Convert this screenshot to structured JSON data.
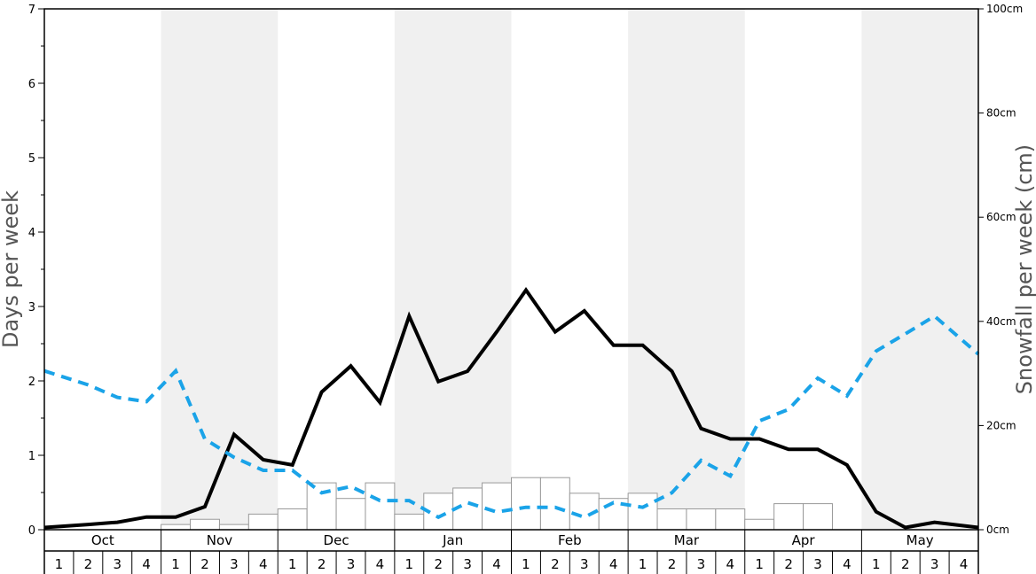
{
  "chart_data": {
    "type": "bar",
    "ylabel_left": "Days per week",
    "ylabel_right": "Snowfall per week (cm)",
    "ylim_left": [
      0,
      7
    ],
    "ylim_right": [
      0,
      100
    ],
    "left_ticks": [
      "0",
      "1",
      "2",
      "3",
      "4",
      "5",
      "6",
      "7"
    ],
    "right_ticks": [
      "0cm",
      "20cm",
      "40cm",
      "60cm",
      "80cm",
      "100cm"
    ],
    "months": [
      "Oct",
      "Nov",
      "Dec",
      "Jan",
      "Feb",
      "Mar",
      "Apr",
      "May"
    ],
    "weeks": [
      "1",
      "2",
      "3",
      "4"
    ],
    "shaded_months": [
      "Nov",
      "Jan",
      "Mar",
      "May"
    ],
    "colors": {
      "black_line": "#000000",
      "blue_dashed_line": "#1aa3e8",
      "bar_fill": "#ffffff",
      "bar_stroke": "#999999",
      "band_shade": "#f0f0f0"
    },
    "series": [
      {
        "type": "bar",
        "axis": "left",
        "values": [
          0,
          0,
          0,
          0,
          0.07,
          0.14,
          0.07,
          0.21,
          0.28,
          0.63,
          0.42,
          0.63,
          0.21,
          0.49,
          0.56,
          0.63,
          0.7,
          0.7,
          0.49,
          0.42,
          0.49,
          0.28,
          0.28,
          0.28,
          0.14,
          0.35,
          0.35,
          0,
          0,
          0,
          0,
          0
        ]
      },
      {
        "type": "line",
        "axis": "left",
        "style": "solid",
        "values": [
          0.03,
          0.07,
          0.1,
          0.17,
          0.17,
          0.31,
          1.28,
          0.94,
          0.87,
          1.85,
          2.2,
          1.71,
          2.87,
          1.99,
          2.13,
          2.66,
          3.22,
          2.66,
          2.94,
          2.48,
          2.48,
          2.13,
          1.36,
          1.22,
          1.22,
          1.08,
          1.08,
          0.87,
          0.24,
          0.03,
          0.1,
          0.03
        ]
      },
      {
        "type": "line",
        "axis": "right",
        "style": "dashed",
        "values": [
          30.5,
          27.8,
          25.4,
          24.6,
          30.5,
          17.4,
          13.9,
          11.4,
          11.4,
          7.1,
          8.3,
          5.6,
          5.6,
          2.4,
          5.2,
          3.4,
          4.3,
          4.3,
          2.4,
          5.2,
          4.3,
          7.1,
          13.3,
          10.3,
          20.9,
          23.1,
          29.1,
          25.7,
          34.3,
          37.6,
          41.0,
          33.7
        ]
      }
    ]
  }
}
